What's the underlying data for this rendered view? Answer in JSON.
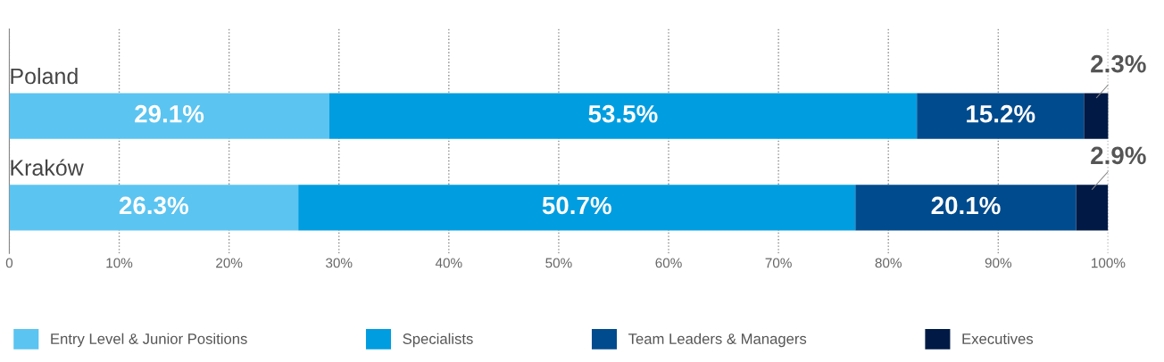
{
  "chart_data": {
    "type": "bar",
    "orientation": "horizontal",
    "stacked": true,
    "categories": [
      "Poland",
      "Kraków"
    ],
    "series": [
      {
        "name": "Entry Level & Junior Positions",
        "color": "#5bc4f1",
        "values": [
          29.1,
          26.3
        ],
        "value_labels": [
          "29.1%",
          "26.3%"
        ]
      },
      {
        "name": "Specialists",
        "color": "#009de0",
        "values": [
          53.5,
          50.7
        ],
        "value_labels": [
          "53.5%",
          "50.7%"
        ]
      },
      {
        "name": "Team Leaders & Managers",
        "color": "#004b8d",
        "values": [
          15.2,
          20.1
        ],
        "value_labels": [
          "15.2%",
          "20.1%"
        ]
      },
      {
        "name": "Executives",
        "color": "#001a45",
        "values": [
          2.3,
          2.9
        ],
        "value_labels": [
          "2.3%",
          "2.9%"
        ]
      }
    ],
    "xlim": [
      0,
      100
    ],
    "xticks": [
      0,
      {
        "value": 10,
        "label": "10%"
      },
      {
        "value": 20,
        "label": "20%"
      },
      {
        "value": 30,
        "label": "30%"
      },
      {
        "value": 40,
        "label": "40%"
      },
      {
        "value": 50,
        "label": "50%"
      },
      {
        "value": 60,
        "label": "60%"
      },
      {
        "value": 70,
        "label": "70%"
      },
      {
        "value": 80,
        "label": "80%"
      },
      {
        "value": 90,
        "label": "90%"
      },
      {
        "value": 100,
        "label": "100%"
      }
    ],
    "grid": "x",
    "legend": "bottom"
  }
}
